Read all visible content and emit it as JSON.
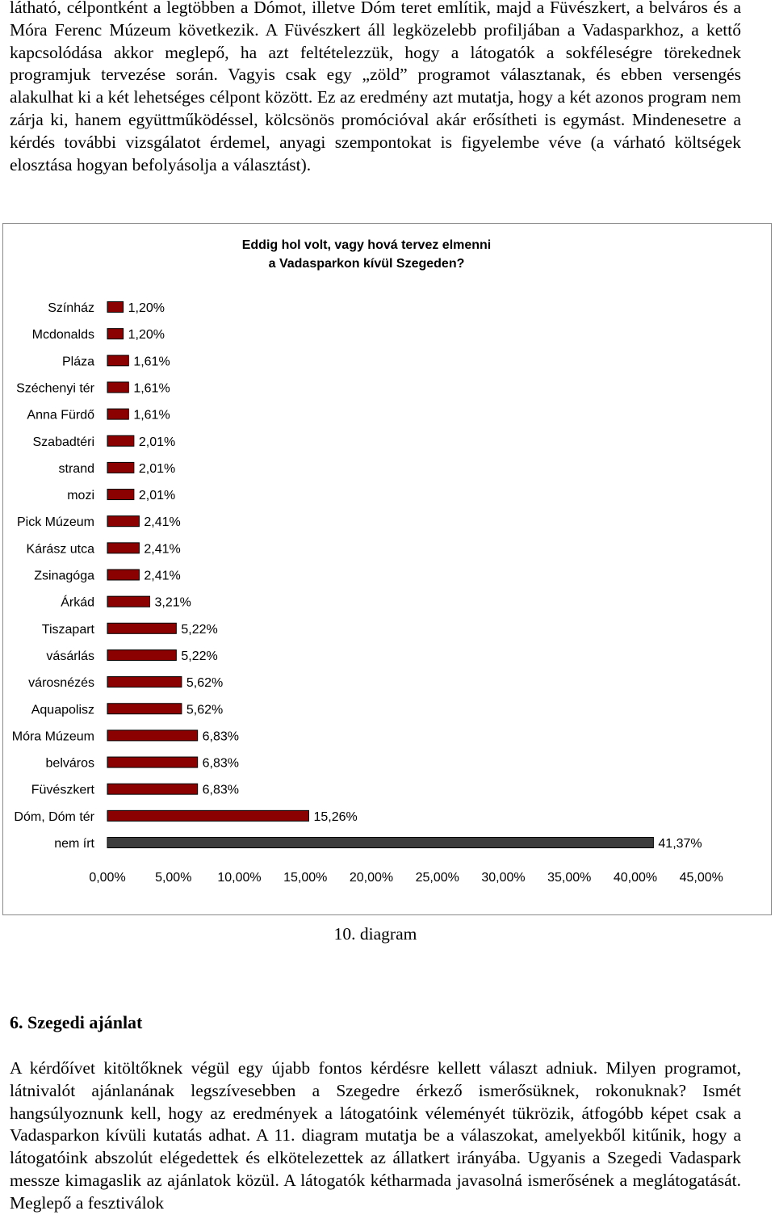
{
  "document": {
    "para_top": "látható, célpontként a legtöbben a Dómot, illetve Dóm teret említik, majd a Füvészkert, a belváros és a Móra Ferenc Múzeum következik. A Füvészkert áll legközelebb profiljában a Vadasparkhoz, a kettő kapcsolódása akkor meglepő, ha azt feltételezzük, hogy a látogatók a sokféleségre törekednek programjuk tervezése során. Vagyis csak egy „zöld” programot választanak, és ebben versengés alakulhat ki a két lehetséges célpont között. Ez az eredmény azt mutatja, hogy a két azonos program nem zárja ki, hanem együttműködéssel, kölcsönös promócióval akár erősítheti is egymást. Mindenesetre a kérdés további vizsgálatot érdemel, anyagi szempontokat is figyelembe véve (a várható költségek elosztása hogyan befolyásolja a választást).",
    "caption": "10. diagram",
    "section_heading": "6. Szegedi ajánlat",
    "para_bottom": "A kérdőívet kitöltőknek végül egy újabb fontos kérdésre kellett választ adniuk. Milyen programot, látnivalót ajánlanának legszívesebben a Szegedre érkező ismerősüknek, rokonuknak? Ismét hangsúlyoznunk kell, hogy az eredmények a látogatóink véleményét tükrözik, átfogóbb képet csak a Vadasparkon kívüli kutatás adhat. A 11. diagram mutatja be a válaszokat, amelyekből kitűnik, hogy a látogatóink abszolút elégedettek és elkötelezettek az állatkert irányába. Ugyanis a Szegedi Vadaspark messze kimagaslik az ajánlatok közül. A látogatók kétharmada javasolná ismerősének a meglátogatását. Meglepő a fesztiválok"
  },
  "chart_data": {
    "type": "bar",
    "orientation": "horizontal",
    "title": "Eddig hol volt, vagy hová tervez elmenni a Vadasparkon kívül Szegeden?",
    "title_lines": [
      "Eddig hol volt, vagy hová tervez elmenni",
      "a Vadasparkon kívül Szegeden?"
    ],
    "categories": [
      "Színház",
      "Mcdonalds",
      "Pláza",
      "Széchenyi tér",
      "Anna Fürdő",
      "Szabadtéri",
      "strand",
      "mozi",
      "Pick Múzeum",
      "Kárász utca",
      "Zsinagóga",
      "Árkád",
      "Tiszapart",
      "vásárlás",
      "városnézés",
      "Aquapolisz",
      "Móra Múzeum",
      "belváros",
      "Füvészkert",
      "Dóm, Dóm tér",
      "nem írt"
    ],
    "values": [
      1.2,
      1.2,
      1.61,
      1.61,
      1.61,
      2.01,
      2.01,
      2.01,
      2.41,
      2.41,
      2.41,
      3.21,
      5.22,
      5.22,
      5.62,
      5.62,
      6.83,
      6.83,
      6.83,
      15.26,
      41.37
    ],
    "value_labels": [
      "1,20%",
      "1,20%",
      "1,61%",
      "1,61%",
      "1,61%",
      "2,01%",
      "2,01%",
      "2,01%",
      "2,41%",
      "2,41%",
      "2,41%",
      "3,21%",
      "5,22%",
      "5,22%",
      "5,62%",
      "5,62%",
      "6,83%",
      "6,83%",
      "6,83%",
      "15,26%",
      "41,37%"
    ],
    "x_ticks": [
      "0,00%",
      "5,00%",
      "10,00%",
      "15,00%",
      "20,00%",
      "25,00%",
      "30,00%",
      "35,00%",
      "40,00%",
      "45,00%"
    ],
    "xlim": [
      0,
      45
    ],
    "grid": false,
    "legend": "none",
    "colors": {
      "bar": "#8b0000",
      "highlight_bar": "#3c3c3c",
      "bar_border": "#000000"
    }
  }
}
